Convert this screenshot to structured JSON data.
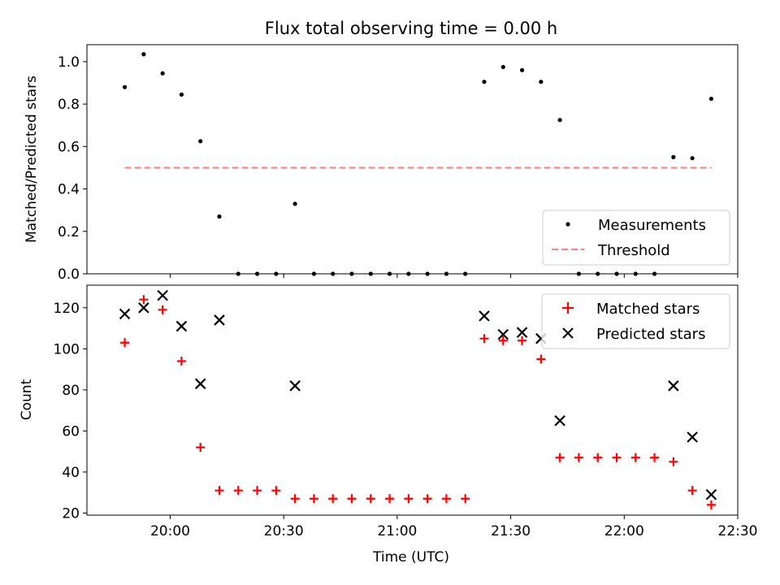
{
  "chart_data": [
    {
      "type": "scatter",
      "title": "Flux total observing time = 0.00 h",
      "xlabel": "",
      "ylabel": "Matched/Predicted stars",
      "ylim": [
        0,
        1.08
      ],
      "yticks": [
        "0.0",
        "0.2",
        "0.4",
        "0.6",
        "0.8",
        "1.0"
      ],
      "xlim": [
        "19:38",
        "22:30"
      ],
      "grid": false,
      "legend_position": "lower-right",
      "series": [
        {
          "name": "Measurements",
          "style": "dot",
          "color": "#000000",
          "points": [
            [
              "19:48",
              0.88
            ],
            [
              "19:53",
              1.035
            ],
            [
              "19:58",
              0.945
            ],
            [
              "20:03",
              0.845
            ],
            [
              "20:08",
              0.625
            ],
            [
              "20:13",
              0.27
            ],
            [
              "20:18",
              0.0
            ],
            [
              "20:23",
              0.0
            ],
            [
              "20:28",
              0.0
            ],
            [
              "20:33",
              0.33
            ],
            [
              "20:38",
              0.0
            ],
            [
              "20:43",
              0.0
            ],
            [
              "20:48",
              0.0
            ],
            [
              "20:53",
              0.0
            ],
            [
              "20:58",
              0.0
            ],
            [
              "21:03",
              0.0
            ],
            [
              "21:08",
              0.0
            ],
            [
              "21:13",
              0.0
            ],
            [
              "21:18",
              0.0
            ],
            [
              "21:23",
              0.905
            ],
            [
              "21:28",
              0.975
            ],
            [
              "21:33",
              0.96
            ],
            [
              "21:38",
              0.905
            ],
            [
              "21:43",
              0.725
            ],
            [
              "21:48",
              0.0
            ],
            [
              "21:53",
              0.0
            ],
            [
              "21:58",
              0.0
            ],
            [
              "22:03",
              0.0
            ],
            [
              "22:08",
              0.0
            ],
            [
              "22:13",
              0.55
            ],
            [
              "22:18",
              0.545
            ],
            [
              "22:23",
              0.825
            ]
          ]
        },
        {
          "name": "Threshold",
          "style": "dashed-line",
          "color": "#ff7f7f",
          "points": [
            [
              "19:48",
              0.5
            ],
            [
              "22:23",
              0.5
            ]
          ]
        }
      ]
    },
    {
      "type": "scatter",
      "title": "",
      "xlabel": "Time (UTC)",
      "ylabel": "Count",
      "ylim": [
        19,
        131
      ],
      "yticks": [
        "20",
        "40",
        "60",
        "80",
        "100",
        "120"
      ],
      "xlim": [
        "19:38",
        "22:30"
      ],
      "xticks": [
        "20:00",
        "20:30",
        "21:00",
        "21:30",
        "22:00",
        "22:30"
      ],
      "grid": false,
      "legend_position": "top-right",
      "series": [
        {
          "name": "Matched stars",
          "style": "plus",
          "color": "#ff0000",
          "points": [
            [
              "19:48",
              103
            ],
            [
              "19:53",
              124
            ],
            [
              "19:58",
              119
            ],
            [
              "20:03",
              94
            ],
            [
              "20:08",
              52
            ],
            [
              "20:13",
              31
            ],
            [
              "20:18",
              31
            ],
            [
              "20:23",
              31
            ],
            [
              "20:28",
              31
            ],
            [
              "20:33",
              27
            ],
            [
              "20:38",
              27
            ],
            [
              "20:43",
              27
            ],
            [
              "20:48",
              27
            ],
            [
              "20:53",
              27
            ],
            [
              "20:58",
              27
            ],
            [
              "21:03",
              27
            ],
            [
              "21:08",
              27
            ],
            [
              "21:13",
              27
            ],
            [
              "21:18",
              27
            ],
            [
              "21:23",
              105
            ],
            [
              "21:28",
              104
            ],
            [
              "21:33",
              104
            ],
            [
              "21:38",
              95
            ],
            [
              "21:43",
              47
            ],
            [
              "21:48",
              47
            ],
            [
              "21:53",
              47
            ],
            [
              "21:58",
              47
            ],
            [
              "22:03",
              47
            ],
            [
              "22:08",
              47
            ],
            [
              "22:13",
              45
            ],
            [
              "22:18",
              31
            ],
            [
              "22:23",
              24
            ]
          ]
        },
        {
          "name": "Predicted stars",
          "style": "x",
          "color": "#000000",
          "points": [
            [
              "19:48",
              117
            ],
            [
              "19:53",
              120
            ],
            [
              "19:58",
              126
            ],
            [
              "20:03",
              111
            ],
            [
              "20:08",
              83
            ],
            [
              "20:13",
              114
            ],
            [
              "20:33",
              82
            ],
            [
              "21:23",
              116
            ],
            [
              "21:28",
              107
            ],
            [
              "21:33",
              108
            ],
            [
              "21:38",
              105
            ],
            [
              "21:43",
              65
            ],
            [
              "22:13",
              82
            ],
            [
              "22:18",
              57
            ],
            [
              "22:23",
              29
            ]
          ]
        }
      ]
    }
  ]
}
